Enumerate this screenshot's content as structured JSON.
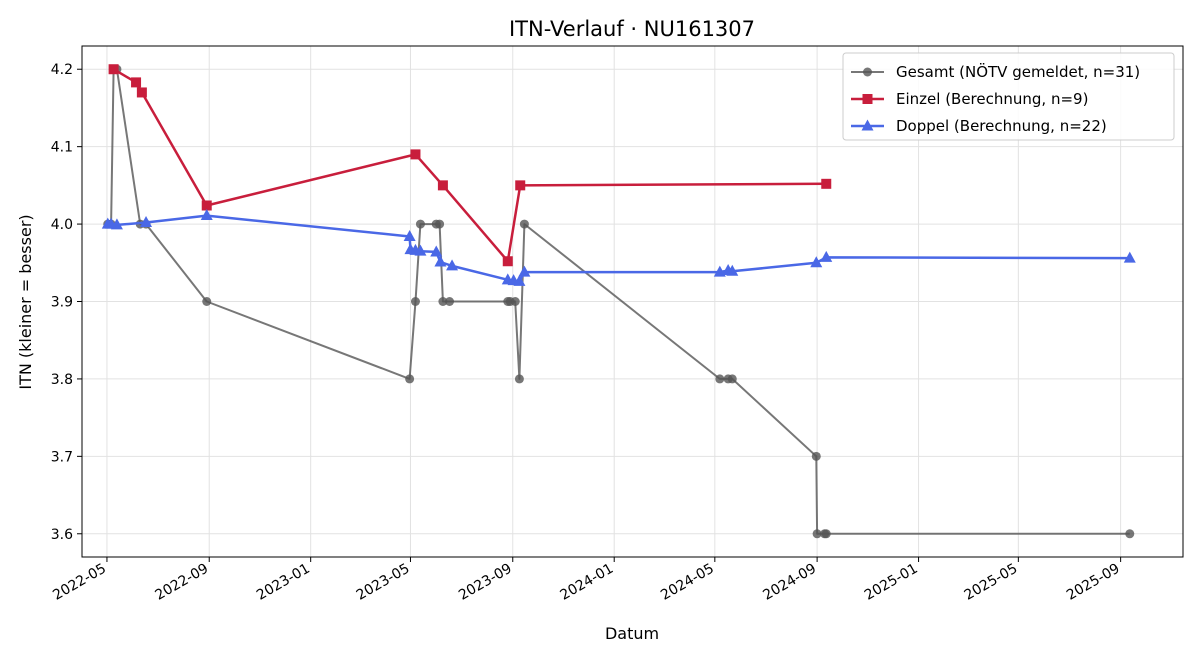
{
  "chart_data": {
    "type": "line",
    "title": "ITN-Verlauf · NU161307",
    "xlabel": "Datum",
    "ylabel": "ITN  (kleiner = besser)",
    "x_axis_type": "date",
    "xlim": [
      "2022-04-01",
      "2025-11-15"
    ],
    "ylim": [
      3.57,
      4.23
    ],
    "x_ticks": [
      "2022-05",
      "2022-09",
      "2023-01",
      "2023-05",
      "2023-09",
      "2024-01",
      "2024-05",
      "2024-09",
      "2025-01",
      "2025-05",
      "2025-09"
    ],
    "y_ticks": [
      "3.6",
      "3.7",
      "3.8",
      "3.9",
      "4.0",
      "4.1",
      "4.2"
    ],
    "grid": true,
    "legend_position": "top-right",
    "series": [
      {
        "name": "Gesamt (NÖTV gemeldet, n=31)",
        "color": "#555555",
        "marker": "circle",
        "points": [
          [
            "2022-05-02",
            4.0
          ],
          [
            "2022-05-06",
            4.0
          ],
          [
            "2022-05-09",
            4.2
          ],
          [
            "2022-05-13",
            4.2
          ],
          [
            "2022-06-10",
            4.0
          ],
          [
            "2022-06-17",
            4.0
          ],
          [
            "2022-08-29",
            3.9
          ],
          [
            "2023-04-30",
            3.8
          ],
          [
            "2023-05-07",
            3.9
          ],
          [
            "2023-05-13",
            4.0
          ],
          [
            "2023-06-01",
            4.0
          ],
          [
            "2023-06-05",
            4.0
          ],
          [
            "2023-06-09",
            3.9
          ],
          [
            "2023-06-17",
            3.9
          ],
          [
            "2023-08-26",
            3.9
          ],
          [
            "2023-08-29",
            3.9
          ],
          [
            "2023-09-04",
            3.9
          ],
          [
            "2023-09-09",
            3.8
          ],
          [
            "2023-09-15",
            4.0
          ],
          [
            "2024-05-07",
            3.8
          ],
          [
            "2024-05-17",
            3.8
          ],
          [
            "2024-05-22",
            3.8
          ],
          [
            "2024-08-31",
            3.7
          ],
          [
            "2024-09-01",
            3.6
          ],
          [
            "2024-09-10",
            3.6
          ],
          [
            "2024-09-12",
            3.6
          ],
          [
            "2025-09-12",
            3.6
          ]
        ]
      },
      {
        "name": "Einzel (Berechnung, n=9)",
        "color": "#c81e3c",
        "marker": "square",
        "points": [
          [
            "2022-05-09",
            4.2
          ],
          [
            "2022-06-05",
            4.183
          ],
          [
            "2022-06-12",
            4.17
          ],
          [
            "2022-08-29",
            4.024
          ],
          [
            "2023-05-07",
            4.09
          ],
          [
            "2023-06-09",
            4.05
          ],
          [
            "2023-08-26",
            3.952
          ],
          [
            "2023-09-10",
            4.05
          ],
          [
            "2024-09-12",
            4.052
          ]
        ]
      },
      {
        "name": "Doppel (Berechnung, n=22)",
        "color": "#4a68e6",
        "marker": "triangle",
        "points": [
          [
            "2022-05-02",
            4.0
          ],
          [
            "2022-05-06",
            4.0
          ],
          [
            "2022-05-13",
            3.999
          ],
          [
            "2022-06-17",
            4.002
          ],
          [
            "2022-08-29",
            4.011
          ],
          [
            "2023-04-30",
            3.984
          ],
          [
            "2023-05-01",
            3.967
          ],
          [
            "2023-05-07",
            3.966
          ],
          [
            "2023-05-13",
            3.965
          ],
          [
            "2023-06-01",
            3.964
          ],
          [
            "2023-06-06",
            3.951
          ],
          [
            "2023-06-20",
            3.946
          ],
          [
            "2023-08-26",
            3.928
          ],
          [
            "2023-09-02",
            3.927
          ],
          [
            "2023-09-09",
            3.926
          ],
          [
            "2023-09-15",
            3.938
          ],
          [
            "2024-05-07",
            3.938
          ],
          [
            "2024-05-17",
            3.94
          ],
          [
            "2024-05-22",
            3.939
          ],
          [
            "2024-08-31",
            3.95
          ],
          [
            "2024-09-12",
            3.957
          ],
          [
            "2025-09-12",
            3.956
          ]
        ]
      }
    ]
  }
}
